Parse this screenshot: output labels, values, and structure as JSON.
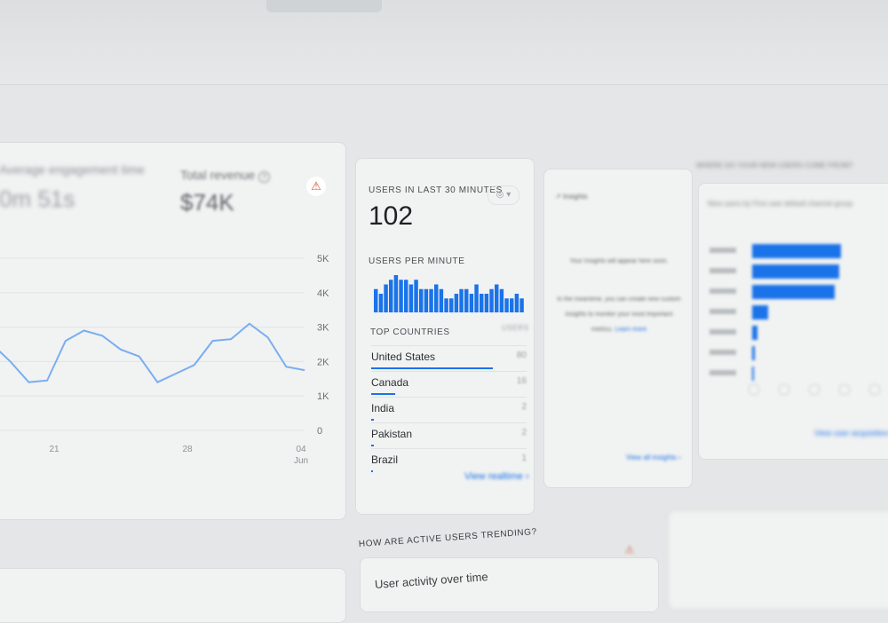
{
  "overview": {
    "engagement_label": "Average engagement time",
    "engagement_value": "0m 51s",
    "revenue_label": "Total revenue",
    "revenue_value": "$74K",
    "alert_icon": "warning-triangle-icon",
    "help_icon": "help-circle-icon",
    "chart_data": {
      "type": "line",
      "y_ticks": [
        "5K",
        "4K",
        "3K",
        "2K",
        "1K",
        "0"
      ],
      "x_ticks": [
        "21",
        "28",
        "04\nJun"
      ],
      "ylim": [
        0,
        5000
      ],
      "values": [
        2500,
        2000,
        1400,
        1450,
        2600,
        2900,
        2750,
        2350,
        2150,
        1400,
        1650,
        1900,
        2600,
        2650,
        3100,
        2700,
        1850,
        1750
      ],
      "color": "#7aaef0"
    }
  },
  "realtime": {
    "title": "USERS IN LAST 30 MINUTES",
    "value": "102",
    "per_minute_label": "USERS PER MINUTE",
    "per_minute": {
      "type": "bar",
      "values": [
        5,
        4,
        6,
        7,
        8,
        7,
        7,
        6,
        7,
        5,
        5,
        5,
        6,
        5,
        3,
        3,
        4,
        5,
        5,
        4,
        6,
        4,
        4,
        5,
        6,
        5,
        3,
        3,
        4,
        3
      ],
      "color": "#1a73e8"
    },
    "countries_header": "TOP COUNTRIES",
    "users_header": "USERS",
    "countries": [
      {
        "name": "United States",
        "users": "80",
        "share": 1.0
      },
      {
        "name": "Canada",
        "users": "16",
        "share": 0.2
      },
      {
        "name": "India",
        "users": "2",
        "share": 0.025
      },
      {
        "name": "Pakistan",
        "users": "2",
        "share": 0.025
      },
      {
        "name": "Brazil",
        "users": "1",
        "share": 0.012
      }
    ],
    "view_link": "View realtime",
    "filter_icon": "compare-circle-icon"
  },
  "insights": {
    "title": "Insights",
    "headline": "Your Insights will appear here soon.",
    "body": "In the meantime, you can create new custom insights to monitor your most important metrics.",
    "learn_more": "Learn more",
    "view_all": "View all insights"
  },
  "acquisition": {
    "title": "WHERE DO YOUR NEW USERS COME FROM?",
    "card_title": "New users by First user default channel group",
    "bars": [
      1.0,
      0.98,
      0.93,
      0.18,
      0.06,
      0.03,
      0.01
    ],
    "color": "#1a73e8",
    "link": "View user acquisition"
  },
  "trending": {
    "title": "HOW ARE ACTIVE USERS TRENDING?",
    "card_title": "User activity over time"
  }
}
